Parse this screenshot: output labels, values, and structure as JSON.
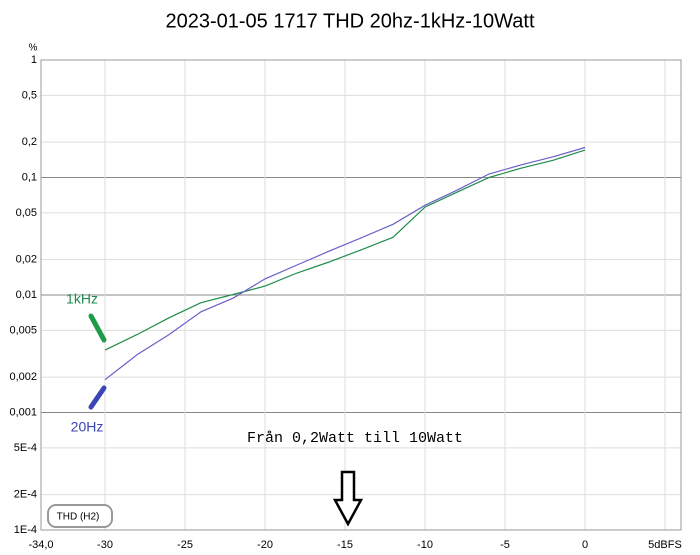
{
  "chart_data": {
    "type": "line",
    "title": "2023-01-05 1717 THD 20hz-1kHz-10Watt",
    "y_unit": "%",
    "y_log": true,
    "grid": true,
    "x": [
      -30,
      -28,
      -26,
      -24,
      -22,
      -20,
      -18,
      -16,
      -14,
      -12,
      -10,
      -8,
      -6,
      -4,
      -2,
      0
    ],
    "series": [
      {
        "name": "1kHz",
        "color": "#1e8c4a",
        "values": [
          0.0034,
          0.0046,
          0.0064,
          0.0086,
          0.0101,
          0.0119,
          0.0154,
          0.0191,
          0.0242,
          0.031,
          0.056,
          0.075,
          0.1,
          0.12,
          0.14,
          0.171
        ]
      },
      {
        "name": "20Hz",
        "color": "#6b5fc9",
        "values": [
          0.0019,
          0.0031,
          0.0046,
          0.0072,
          0.0094,
          0.0137,
          0.018,
          0.0236,
          0.0306,
          0.04,
          0.058,
          0.078,
          0.107,
          0.128,
          0.15,
          0.18
        ]
      }
    ],
    "xlim": [
      -34,
      6
    ],
    "xticks": [
      {
        "value": -34,
        "label": "-34,0"
      },
      -30,
      -25,
      -20,
      -15,
      -10,
      -5,
      0,
      {
        "value": 5,
        "label": "5dBFS"
      }
    ],
    "ylim": [
      0.0001,
      1
    ],
    "yticks": [
      1,
      {
        "value": 0.5,
        "label": "0,5"
      },
      {
        "value": 0.2,
        "label": "0,2"
      },
      {
        "value": 0.1,
        "label": "0,1"
      },
      {
        "value": 0.05,
        "label": "0,05"
      },
      {
        "value": 0.02,
        "label": "0,02"
      },
      {
        "value": 0.01,
        "label": "0,01"
      },
      {
        "value": 0.005,
        "label": "0,005"
      },
      {
        "value": 0.002,
        "label": "0,002"
      },
      {
        "value": 0.001,
        "label": "0,001"
      },
      {
        "value": 0.0005,
        "label": "5E-4"
      },
      {
        "value": 0.0002,
        "label": "2E-4"
      },
      {
        "value": 0.0001,
        "label": "1E-4"
      }
    ],
    "annotation": "Från 0,2Watt till 10Watt",
    "box_label": "THD (H2)"
  }
}
